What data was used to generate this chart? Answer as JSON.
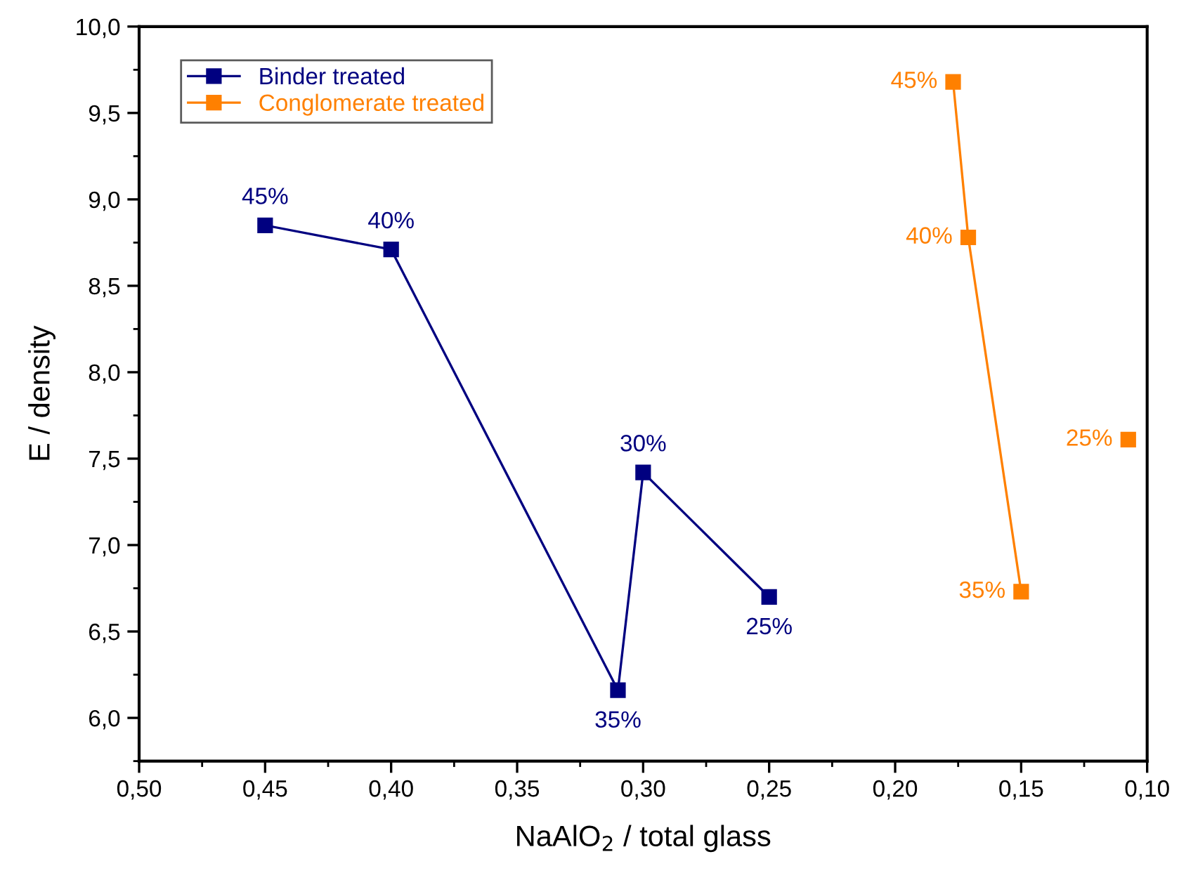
{
  "chart_data": {
    "type": "line",
    "xlabel": "NaAlO$_{2}$ / total glass",
    "ylabel": "E / density",
    "xlim": [
      0.5,
      0.1
    ],
    "ylim": [
      5.75,
      10.0
    ],
    "xticks": [
      {
        "value": 0.5,
        "label": "0,50"
      },
      {
        "value": 0.45,
        "label": "0,45"
      },
      {
        "value": 0.4,
        "label": "0,40"
      },
      {
        "value": 0.35,
        "label": "0,35"
      },
      {
        "value": 0.3,
        "label": "0,30"
      },
      {
        "value": 0.25,
        "label": "0,25"
      },
      {
        "value": 0.2,
        "label": "0,20"
      },
      {
        "value": 0.15,
        "label": "0,15"
      },
      {
        "value": 0.1,
        "label": "0,10"
      }
    ],
    "yticks": [
      {
        "value": 6.0,
        "label": "6,0"
      },
      {
        "value": 6.5,
        "label": "6,5"
      },
      {
        "value": 7.0,
        "label": "7,0"
      },
      {
        "value": 7.5,
        "label": "7,5"
      },
      {
        "value": 8.0,
        "label": "8,0"
      },
      {
        "value": 8.5,
        "label": "8,5"
      },
      {
        "value": 9.0,
        "label": "9,0"
      },
      {
        "value": 9.5,
        "label": "9,5"
      },
      {
        "value": 10.0,
        "label": "10,0"
      }
    ],
    "marker": "square",
    "legend": "top left",
    "grid": false,
    "series": [
      {
        "name": "Binder treated",
        "color": "#000080",
        "x": [
          0.45,
          0.4,
          0.31,
          0.3,
          0.25
        ],
        "values": [
          8.85,
          8.71,
          6.16,
          7.42,
          6.7
        ]
      },
      {
        "name": "Conglomerate treated",
        "color": "#ff8000",
        "x": [
          0.177,
          0.171,
          0.15
        ],
        "values": [
          9.68,
          8.78,
          6.73
        ]
      },
      {
        "type": "scatter",
        "color": "#ff8000",
        "x": [
          0.1075
        ],
        "values": [
          7.61
        ]
      }
    ],
    "annotations": [
      {
        "text": "45%",
        "x": 0.45,
        "y": 8.85
      },
      {
        "text": "40%",
        "x": 0.4,
        "y": 8.71
      },
      {
        "text": "35%",
        "x": 0.31,
        "y": 6.16
      },
      {
        "text": "30%",
        "x": 0.3,
        "y": 7.42
      },
      {
        "text": "25%",
        "x": 0.25,
        "y": 6.7
      },
      {
        "text": "45%",
        "x": 0.177,
        "y": 9.68
      },
      {
        "text": "40%",
        "x": 0.171,
        "y": 8.78
      },
      {
        "text": "35%",
        "x": 0.15,
        "y": 6.73
      },
      {
        "text": "25%",
        "x": 0.1075,
        "y": 7.61
      }
    ]
  }
}
